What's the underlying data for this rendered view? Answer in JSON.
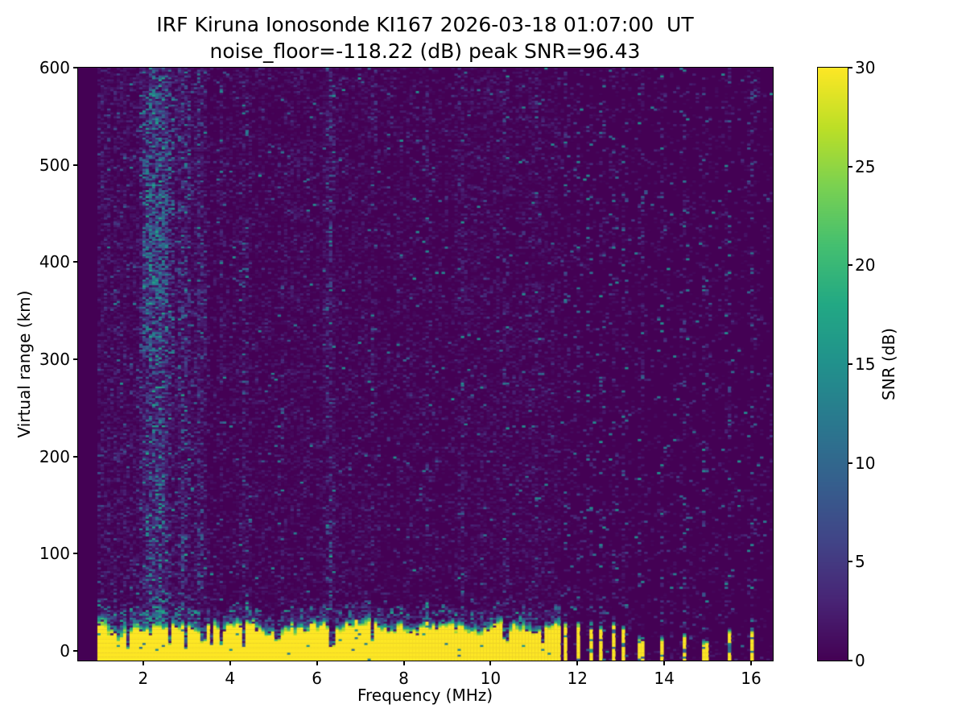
{
  "title": {
    "line1": "IRF Kiruna Ionosonde KI167 2026-03-18 01:07:00  UT",
    "line2": "noise_floor=-118.22 (dB) peak SNR=96.43"
  },
  "axes": {
    "xlabel": "Frequency (MHz)",
    "ylabel": "Virtual range (km)",
    "xticks": [
      2,
      4,
      6,
      8,
      10,
      12,
      14,
      16
    ],
    "yticks": [
      0,
      100,
      200,
      300,
      400,
      500,
      600
    ]
  },
  "colorbar": {
    "label": "SNR (dB)",
    "ticks": [
      0,
      5,
      10,
      15,
      20,
      25,
      30
    ],
    "vmin": 0,
    "vmax": 30
  },
  "chart_data": {
    "type": "heatmap",
    "title": "IRF Kiruna Ionosonde KI167 2026-03-18 01:07:00  UT",
    "subtitle": "noise_floor=-118.22 (dB) peak SNR=96.43",
    "station": "IRF Kiruna Ionosonde KI167",
    "timestamp_ut": "2026-03-18 01:07:00",
    "noise_floor_db": -118.22,
    "peak_snr_db": 96.43,
    "xlabel": "Frequency (MHz)",
    "ylabel": "Virtual range (km)",
    "zlabel": "SNR (dB)",
    "xlim": [
      0.5,
      16.5
    ],
    "ylim": [
      -10,
      600
    ],
    "vmin": 0,
    "vmax": 30,
    "colormap": "viridis",
    "colormap_stops": [
      [
        0.0,
        "#440154"
      ],
      [
        0.1,
        "#482475"
      ],
      [
        0.2,
        "#414487"
      ],
      [
        0.3,
        "#355f8d"
      ],
      [
        0.4,
        "#2a788e"
      ],
      [
        0.5,
        "#21918c"
      ],
      [
        0.6,
        "#22a884"
      ],
      [
        0.7,
        "#44bf70"
      ],
      [
        0.8,
        "#7ad151"
      ],
      [
        0.9,
        "#bddf26"
      ],
      [
        1.0,
        "#fde725"
      ]
    ],
    "features": {
      "seed": 42,
      "grid": {
        "cols": 216,
        "rows": 305
      },
      "data_start_mhz": 0.95,
      "ground_band": {
        "freq_end_mhz": 11.63,
        "top_km_mean": 29,
        "top_km_min": 20,
        "top_km_max": 42,
        "fringe_km": 9,
        "value_db": 30
      },
      "notches": [
        {
          "f": 1.66,
          "top": 5
        },
        {
          "f": 2.62,
          "top": 10
        },
        {
          "f": 2.98,
          "top": 5
        },
        {
          "f": 3.38,
          "top": 11
        },
        {
          "f": 3.58,
          "top": 8
        },
        {
          "f": 3.78,
          "top": 10
        },
        {
          "f": 4.32,
          "top": 6
        },
        {
          "f": 5.08,
          "top": 12
        },
        {
          "f": 6.35,
          "top": 7
        },
        {
          "f": 7.28,
          "top": 12
        },
        {
          "f": 10.34,
          "top": 14
        },
        {
          "f": 11.2,
          "top": 13
        }
      ],
      "rfi_columns": [
        {
          "f": 11.74,
          "top": 30
        },
        {
          "f": 12.01,
          "top": 32
        },
        {
          "f": 12.29,
          "top": 29
        },
        {
          "f": 12.56,
          "top": 28
        },
        {
          "f": 12.83,
          "top": 30
        },
        {
          "f": 13.08,
          "top": 26
        },
        {
          "f": 13.46,
          "top": 16
        },
        {
          "f": 13.96,
          "top": 14
        },
        {
          "f": 14.46,
          "top": 18
        },
        {
          "f": 14.94,
          "top": 13
        },
        {
          "f": 15.48,
          "top": 26
        },
        {
          "f": 16.0,
          "top": 22
        }
      ],
      "noise_stripes": [
        {
          "f": 2.1,
          "w": 0.1,
          "s": 1.6
        },
        {
          "f": 2.3,
          "w": 0.12,
          "s": 2.4
        },
        {
          "f": 2.5,
          "w": 0.1,
          "s": 1.8
        },
        {
          "f": 2.95,
          "w": 0.09,
          "s": 1.5
        },
        {
          "f": 3.3,
          "w": 0.07,
          "s": 1.0
        },
        {
          "f": 3.8,
          "w": 0.05,
          "s": 0.7
        },
        {
          "f": 4.35,
          "w": 0.06,
          "s": 1.1
        },
        {
          "f": 5.2,
          "w": 0.05,
          "s": 0.6
        },
        {
          "f": 6.3,
          "w": 0.07,
          "s": 1.3
        },
        {
          "f": 7.3,
          "w": 0.05,
          "s": 0.8
        },
        {
          "f": 8.55,
          "w": 0.05,
          "s": 0.6
        },
        {
          "f": 9.35,
          "w": 0.05,
          "s": 0.7
        },
        {
          "f": 10.35,
          "w": 0.05,
          "s": 0.6
        },
        {
          "f": 11.05,
          "w": 0.05,
          "s": 0.6
        }
      ],
      "noise_blob": {
        "f0": 1.95,
        "f1": 2.7,
        "km0": 300,
        "km1": 575,
        "p": 0.28
      }
    }
  }
}
